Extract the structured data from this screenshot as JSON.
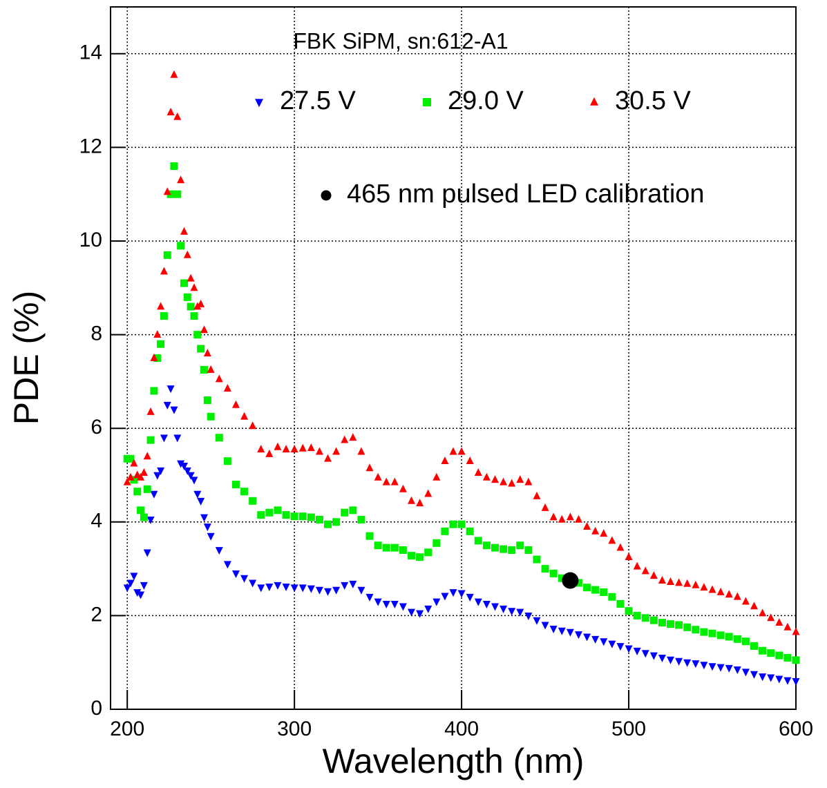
{
  "chart_data": {
    "type": "scatter",
    "title": "FBK SiPM, sn:612-A1",
    "x_label": "Wavelength (nm)",
    "y_label": "PDE (%)",
    "xlim": [
      190,
      600
    ],
    "ylim": [
      0,
      15
    ],
    "xticks": [
      200,
      300,
      400,
      500,
      600
    ],
    "yticks": [
      0,
      2,
      4,
      6,
      8,
      10,
      12,
      14
    ],
    "grid": true,
    "x": [
      200,
      202,
      204,
      206,
      208,
      210,
      212,
      214,
      216,
      218,
      220,
      222,
      224,
      226,
      228,
      230,
      232,
      234,
      236,
      238,
      240,
      242,
      244,
      246,
      248,
      250,
      255,
      260,
      265,
      270,
      275,
      280,
      285,
      290,
      295,
      300,
      305,
      310,
      315,
      320,
      325,
      330,
      335,
      340,
      345,
      350,
      355,
      360,
      365,
      370,
      375,
      380,
      385,
      390,
      395,
      400,
      405,
      410,
      415,
      420,
      425,
      430,
      435,
      440,
      445,
      450,
      455,
      460,
      465,
      470,
      475,
      480,
      485,
      490,
      495,
      500,
      505,
      510,
      515,
      520,
      525,
      530,
      535,
      540,
      545,
      550,
      555,
      560,
      565,
      570,
      575,
      580,
      585,
      590,
      595,
      600
    ],
    "series": [
      {
        "name": "27.5 V",
        "color": "#0000ff",
        "marker": "triangle-down",
        "values": [
          2.6,
          2.7,
          2.85,
          2.5,
          2.45,
          2.65,
          3.35,
          4.05,
          4.6,
          5.0,
          5.1,
          5.8,
          6.5,
          6.85,
          6.4,
          5.8,
          5.25,
          5.2,
          5.1,
          5.0,
          4.9,
          4.6,
          4.45,
          4.1,
          3.9,
          3.7,
          3.4,
          3.1,
          2.9,
          2.8,
          2.7,
          2.6,
          2.62,
          2.65,
          2.62,
          2.6,
          2.6,
          2.58,
          2.55,
          2.52,
          2.55,
          2.65,
          2.68,
          2.55,
          2.4,
          2.3,
          2.25,
          2.25,
          2.2,
          2.08,
          2.05,
          2.15,
          2.3,
          2.42,
          2.5,
          2.48,
          2.4,
          2.3,
          2.25,
          2.2,
          2.15,
          2.1,
          2.08,
          2.0,
          1.9,
          1.8,
          1.72,
          1.68,
          1.65,
          1.6,
          1.55,
          1.5,
          1.45,
          1.4,
          1.35,
          1.3,
          1.25,
          1.2,
          1.15,
          1.1,
          1.06,
          1.03,
          1.0,
          0.98,
          0.95,
          0.92,
          0.9,
          0.88,
          0.85,
          0.8,
          0.75,
          0.7,
          0.68,
          0.65,
          0.62,
          0.6
        ]
      },
      {
        "name": "29.0 V",
        "color": "#00ee00",
        "marker": "square",
        "values": [
          5.35,
          5.35,
          4.9,
          4.65,
          4.25,
          4.1,
          4.7,
          5.75,
          6.8,
          7.5,
          7.8,
          8.4,
          9.7,
          11.0,
          11.6,
          11.0,
          9.9,
          9.1,
          8.8,
          8.6,
          8.4,
          8.0,
          7.7,
          7.25,
          6.6,
          6.25,
          5.8,
          5.3,
          4.8,
          4.65,
          4.45,
          4.15,
          4.2,
          4.25,
          4.15,
          4.12,
          4.12,
          4.1,
          4.05,
          3.95,
          4.0,
          4.2,
          4.25,
          4.05,
          3.7,
          3.5,
          3.45,
          3.45,
          3.4,
          3.28,
          3.25,
          3.35,
          3.55,
          3.8,
          3.95,
          3.95,
          3.8,
          3.6,
          3.5,
          3.45,
          3.42,
          3.4,
          3.5,
          3.4,
          3.2,
          3.0,
          2.9,
          2.8,
          2.75,
          2.7,
          2.6,
          2.55,
          2.5,
          2.4,
          2.25,
          2.1,
          2.0,
          1.95,
          1.9,
          1.85,
          1.82,
          1.8,
          1.75,
          1.7,
          1.65,
          1.62,
          1.58,
          1.55,
          1.5,
          1.45,
          1.35,
          1.25,
          1.2,
          1.15,
          1.1,
          1.05
        ]
      },
      {
        "name": "30.5 V",
        "color": "#ff0000",
        "marker": "triangle-up",
        "values": [
          4.85,
          4.95,
          5.25,
          5.0,
          4.95,
          5.05,
          5.4,
          6.35,
          7.5,
          8.0,
          8.6,
          9.35,
          11.05,
          12.75,
          13.55,
          12.65,
          11.3,
          10.2,
          9.7,
          9.2,
          9.0,
          8.6,
          8.65,
          8.1,
          7.6,
          7.25,
          7.05,
          6.85,
          6.5,
          6.25,
          6.05,
          5.55,
          5.45,
          5.6,
          5.55,
          5.55,
          5.57,
          5.58,
          5.5,
          5.35,
          5.5,
          5.75,
          5.8,
          5.5,
          5.15,
          4.95,
          4.85,
          4.85,
          4.7,
          4.45,
          4.4,
          4.6,
          4.95,
          5.3,
          5.5,
          5.5,
          5.3,
          5.05,
          4.95,
          4.9,
          4.85,
          4.82,
          4.9,
          4.85,
          4.55,
          4.3,
          4.1,
          4.05,
          4.1,
          4.05,
          3.9,
          3.8,
          3.75,
          3.6,
          3.45,
          3.25,
          3.05,
          2.95,
          2.85,
          2.75,
          2.72,
          2.7,
          2.68,
          2.65,
          2.6,
          2.55,
          2.5,
          2.45,
          2.4,
          2.3,
          2.2,
          2.05,
          1.95,
          1.85,
          1.75,
          1.65
        ]
      },
      {
        "name": "465 nm pulsed LED calibration",
        "color": "#000000",
        "marker": "circle",
        "x": [
          465
        ],
        "values": [
          2.75
        ]
      }
    ]
  }
}
